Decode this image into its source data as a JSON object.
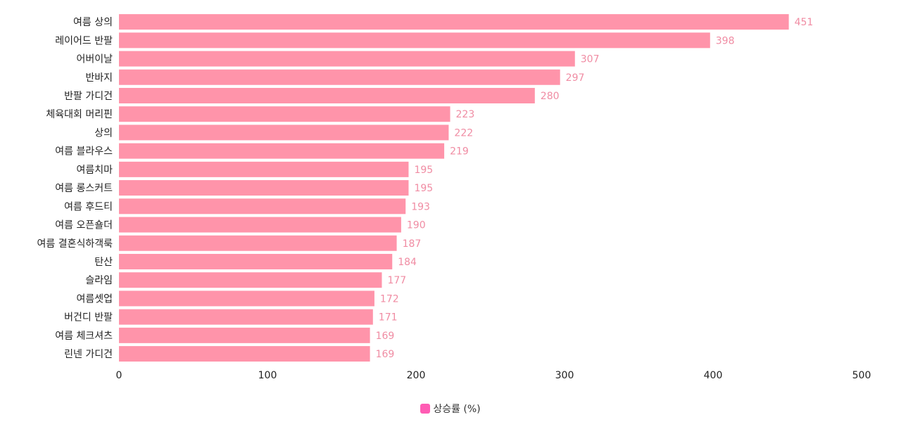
{
  "chart_data": {
    "type": "bar",
    "orientation": "horizontal",
    "categories": [
      "여름 상의",
      "레이어드 반팔",
      "어버이날",
      "반바지",
      "반팔 가디건",
      "체육대회 머리핀",
      "상의",
      "여름 블라우스",
      "여름치마",
      "여름 롱스커트",
      "여름 후드티",
      "여름 오픈숄더",
      "여름 결혼식하객룩",
      "탄산",
      "슬라임",
      "여름셋업",
      "버건디 반팔",
      "여름 체크셔츠",
      "린넨 가디건"
    ],
    "series": [
      {
        "name": "상승률 (%)",
        "values": [
          451,
          398,
          307,
          297,
          280,
          223,
          222,
          219,
          195,
          195,
          193,
          190,
          187,
          184,
          177,
          172,
          171,
          169,
          169
        ]
      }
    ],
    "xlim": [
      0,
      500
    ],
    "xticks": [
      0,
      100,
      200,
      300,
      400,
      500
    ],
    "grid": false,
    "data_labels": true,
    "legend": "bottom",
    "colors": {
      "bar": "#ff94aa",
      "label": "#f08ca3",
      "legend_swatch": "#ff5cb4"
    }
  }
}
